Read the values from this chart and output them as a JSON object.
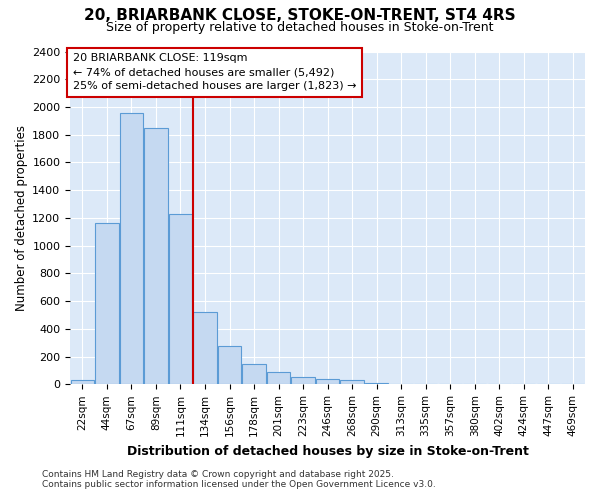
{
  "title_line1": "20, BRIARBANK CLOSE, STOKE-ON-TRENT, ST4 4RS",
  "title_line2": "Size of property relative to detached houses in Stoke-on-Trent",
  "xlabel": "Distribution of detached houses by size in Stoke-on-Trent",
  "ylabel": "Number of detached properties",
  "categories": [
    "22sqm",
    "44sqm",
    "67sqm",
    "89sqm",
    "111sqm",
    "134sqm",
    "156sqm",
    "178sqm",
    "201sqm",
    "223sqm",
    "246sqm",
    "268sqm",
    "290sqm",
    "313sqm",
    "335sqm",
    "357sqm",
    "380sqm",
    "402sqm",
    "424sqm",
    "447sqm",
    "469sqm"
  ],
  "values": [
    28,
    1160,
    1960,
    1850,
    1230,
    520,
    275,
    150,
    90,
    55,
    40,
    30,
    8,
    5,
    4,
    3,
    2,
    2,
    1,
    1,
    3
  ],
  "bar_color": "#c5d9f1",
  "bar_edge_color": "#5b9bd5",
  "red_line_x": 4.5,
  "annotation_text": "20 BRIARBANK CLOSE: 119sqm\n← 74% of detached houses are smaller (5,492)\n25% of semi-detached houses are larger (1,823) →",
  "annotation_box_facecolor": "#ffffff",
  "annotation_box_edgecolor": "#cc0000",
  "ylim_max": 2400,
  "ytick_step": 200,
  "figure_facecolor": "#ffffff",
  "axes_facecolor": "#dce9f8",
  "grid_color": "#ffffff",
  "footer_line1": "Contains HM Land Registry data © Crown copyright and database right 2025.",
  "footer_line2": "Contains public sector information licensed under the Open Government Licence v3.0."
}
